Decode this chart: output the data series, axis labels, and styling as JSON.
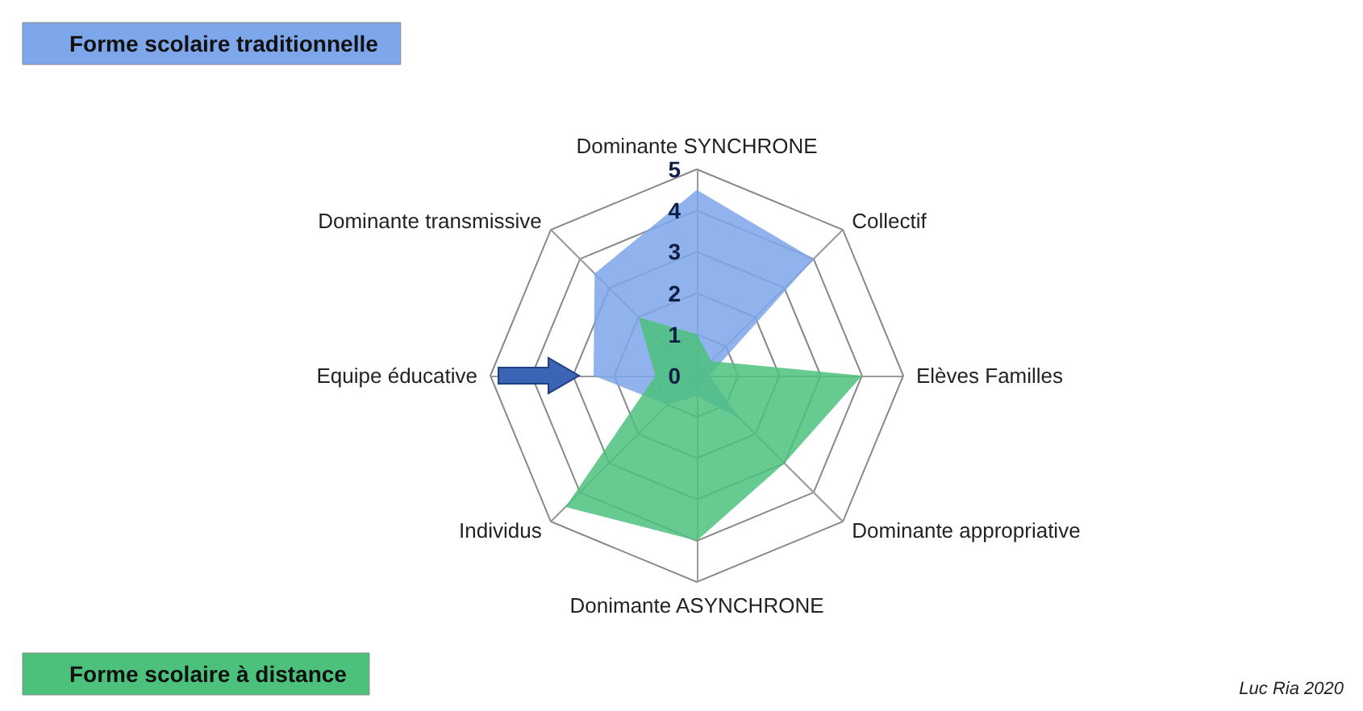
{
  "chart_data": {
    "type": "radar",
    "categories": [
      "Dominante SYNCHRONE",
      "Collectif",
      "Elèves Familles",
      "Dominante appropriative",
      "Donimante ASYNCHRONE",
      "Individus",
      "Equipe éducative",
      "Dominante transmissive"
    ],
    "series": [
      {
        "name": "Forme scolaire traditionnelle",
        "color": "#7ea6ea",
        "values": [
          4.5,
          4,
          0.3,
          1.5,
          0.5,
          1,
          2.5,
          3.5
        ]
      },
      {
        "name": "Forme scolaire à distance",
        "color": "#4cc17c",
        "values": [
          1,
          0.5,
          4,
          3,
          4,
          4.5,
          1,
          2
        ]
      }
    ],
    "ylim": [
      0,
      5
    ],
    "yticks": [
      0,
      1,
      2,
      3,
      4,
      5
    ],
    "legend": "left",
    "annotations": [
      "Luc Ria 2020"
    ]
  }
}
